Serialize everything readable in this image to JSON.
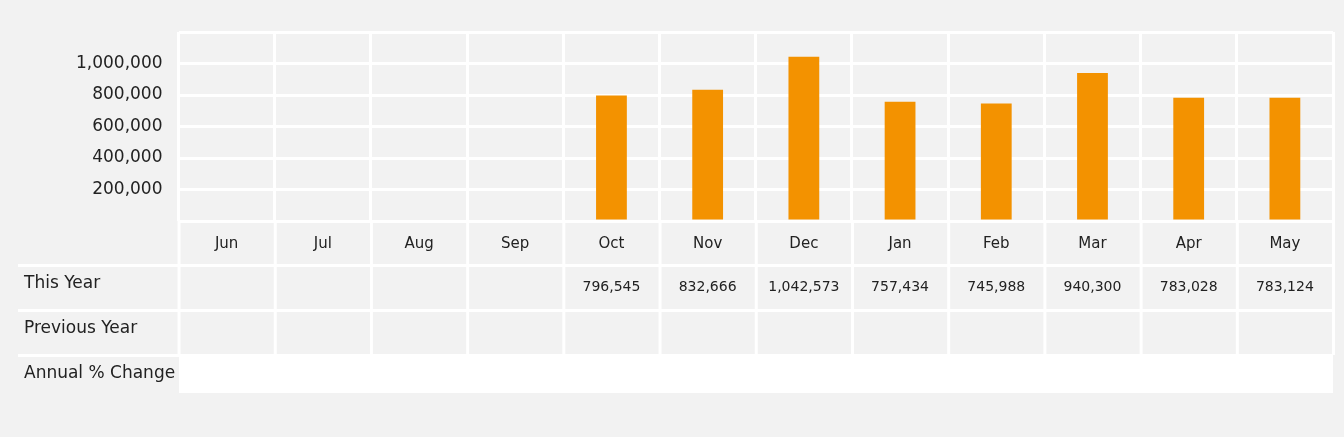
{
  "chart_data": {
    "type": "bar",
    "categories": [
      "Jun",
      "Jul",
      "Aug",
      "Sep",
      "Oct",
      "Nov",
      "Dec",
      "Jan",
      "Feb",
      "Mar",
      "Apr",
      "May"
    ],
    "series": [
      {
        "name": "This Year",
        "color": "#f39200",
        "values": [
          null,
          null,
          null,
          null,
          796545,
          832666,
          1042573,
          757434,
          745988,
          940300,
          783028,
          783124
        ],
        "value_labels": [
          null,
          null,
          null,
          null,
          "796,545",
          "832,666",
          "1,042,573",
          "757,434",
          "745,988",
          "940,300",
          "783,028",
          "783,124"
        ]
      }
    ],
    "ylim": [
      0,
      1200000
    ],
    "yticks": [
      {
        "value": 0,
        "label": null
      },
      {
        "value": 200000,
        "label": "200,000"
      },
      {
        "value": 400000,
        "label": "400,000"
      },
      {
        "value": 600000,
        "label": "600,000"
      },
      {
        "value": 800000,
        "label": "800,000"
      },
      {
        "value": 1000000,
        "label": "1,000,000"
      },
      {
        "value": 1200000,
        "label": null
      }
    ],
    "grid": true,
    "annotations": [
      "Previous Year",
      "Annual % Change"
    ]
  }
}
